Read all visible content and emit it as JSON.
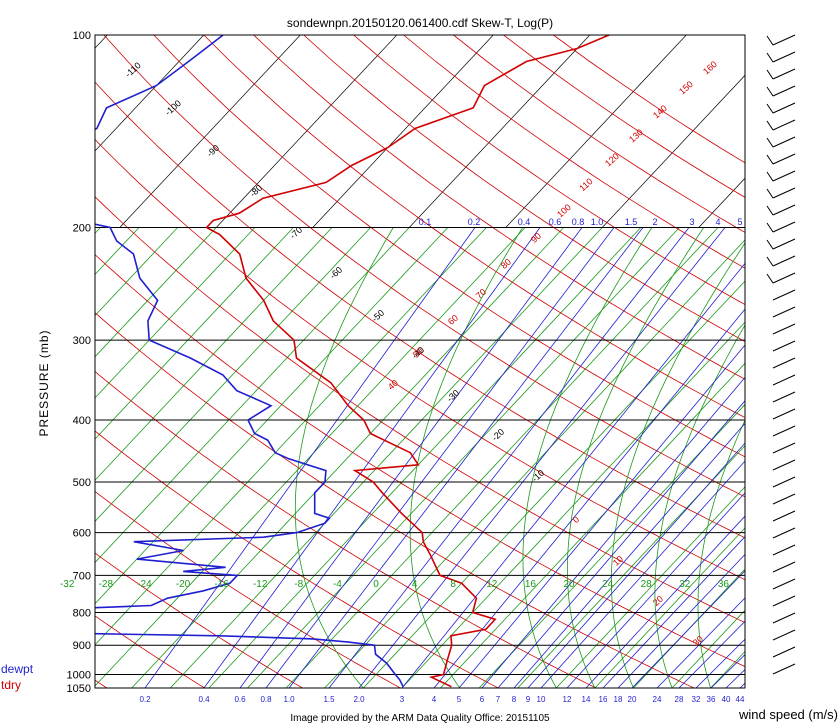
{
  "title": "sondewnpn.20150120.061400.cdf    Skew-T, Log(P)",
  "y_axis_label": "PRESSURE  (mb)",
  "footer": "Image provided by the ARM Data Quality Office: 20151105",
  "wind_axis_label": "wind speed  (m/s)",
  "legend": {
    "dewpt": "dewpt",
    "tdry": "tdry"
  },
  "colors": {
    "dewpt": "#1f1fd0",
    "tdry": "#d00000",
    "isotherm": "#1a9a1a",
    "theta": "#d00000",
    "mixing": "#1f1fd0",
    "grid": "#000000"
  },
  "chart_data": {
    "type": "line",
    "pressure_levels": [
      "100",
      "200",
      "300",
      "400",
      "500",
      "600",
      "700",
      "800",
      "900",
      "1000",
      "1050"
    ],
    "pressure_values": [
      100,
      200,
      300,
      400,
      500,
      600,
      700,
      800,
      900,
      1000,
      1050
    ],
    "temperature_ticks": [
      "-32",
      "-28",
      "-24",
      "-20",
      "-16",
      "-12",
      "-8",
      "-4",
      "0",
      "4",
      "8",
      "12",
      "16",
      "20",
      "24",
      "28",
      "32",
      "36"
    ],
    "mixing_ratio_top": [
      "0.1",
      "0.2",
      "0.4",
      "0.6",
      "0.8",
      "1.0",
      "1.5",
      "2",
      "3",
      "4",
      "5"
    ],
    "mixing_ratio_bottom": [
      "0.2",
      "0.4",
      "0.6",
      "0.8",
      "1.0",
      "1.5",
      "2.0",
      "3",
      "4",
      "5",
      "6",
      "7",
      "8",
      "9",
      "10",
      "12",
      "14",
      "16",
      "18",
      "20",
      "24",
      "28",
      "32",
      "36",
      "40",
      "44"
    ],
    "theta_labels": [
      "-110",
      "-100",
      "-90",
      "-80",
      "-70",
      "-60",
      "-50",
      "-40",
      "-30",
      "-20",
      "-10",
      "0",
      "10",
      "20",
      "30",
      "40",
      "50",
      "60",
      "70",
      "80",
      "90",
      "100",
      "110",
      "120",
      "130",
      "140",
      "150",
      "160"
    ],
    "series": [
      {
        "name": "tdry",
        "points": [
          [
            1045,
            9
          ],
          [
            1010,
            6
          ],
          [
            1000,
            7
          ],
          [
            950,
            6
          ],
          [
            900,
            5
          ],
          [
            870,
            4
          ],
          [
            850,
            7
          ],
          [
            820,
            7
          ],
          [
            800,
            4
          ],
          [
            760,
            3
          ],
          [
            720,
            0
          ],
          [
            700,
            -3
          ],
          [
            650,
            -6
          ],
          [
            620,
            -8
          ],
          [
            600,
            -9
          ],
          [
            560,
            -13
          ],
          [
            520,
            -17
          ],
          [
            500,
            -19
          ],
          [
            480,
            -22
          ],
          [
            470,
            -16
          ],
          [
            450,
            -18
          ],
          [
            420,
            -24
          ],
          [
            400,
            -26
          ],
          [
            380,
            -29
          ],
          [
            350,
            -33
          ],
          [
            320,
            -39
          ],
          [
            300,
            -41
          ],
          [
            280,
            -45
          ],
          [
            260,
            -48
          ],
          [
            240,
            -52
          ],
          [
            220,
            -55
          ],
          [
            205,
            -59
          ],
          [
            200,
            -61
          ],
          [
            195,
            -61
          ],
          [
            190,
            -59
          ],
          [
            180,
            -58
          ],
          [
            170,
            -53
          ],
          [
            160,
            -52
          ],
          [
            150,
            -50
          ],
          [
            140,
            -49
          ],
          [
            130,
            -45
          ],
          [
            120,
            -46
          ],
          [
            110,
            -44
          ],
          [
            105,
            -40
          ],
          [
            100,
            -38
          ]
        ]
      },
      {
        "name": "dewpt",
        "points": [
          [
            1045,
            4
          ],
          [
            1020,
            3
          ],
          [
            1000,
            2
          ],
          [
            960,
            0
          ],
          [
            930,
            -2
          ],
          [
            900,
            -3
          ],
          [
            890,
            -6
          ],
          [
            880,
            -10
          ],
          [
            870,
            -20
          ],
          [
            860,
            -40
          ],
          [
            850,
            -56
          ],
          [
            840,
            -54
          ],
          [
            820,
            -48
          ],
          [
            810,
            -38
          ],
          [
            800,
            -42
          ],
          [
            790,
            -39
          ],
          [
            780,
            -30
          ],
          [
            760,
            -29
          ],
          [
            740,
            -26
          ],
          [
            720,
            -24
          ],
          [
            700,
            -24
          ],
          [
            690,
            -30
          ],
          [
            680,
            -26
          ],
          [
            660,
            -36
          ],
          [
            640,
            -32
          ],
          [
            620,
            -38
          ],
          [
            610,
            -25
          ],
          [
            600,
            -22
          ],
          [
            580,
            -20
          ],
          [
            570,
            -20
          ],
          [
            560,
            -22
          ],
          [
            520,
            -24
          ],
          [
            500,
            -24
          ],
          [
            480,
            -25
          ],
          [
            460,
            -30
          ],
          [
            450,
            -32
          ],
          [
            430,
            -34
          ],
          [
            420,
            -36
          ],
          [
            400,
            -38
          ],
          [
            380,
            -37
          ],
          [
            360,
            -42
          ],
          [
            340,
            -45
          ],
          [
            320,
            -50
          ],
          [
            300,
            -56
          ],
          [
            280,
            -58
          ],
          [
            260,
            -59
          ],
          [
            240,
            -63
          ],
          [
            220,
            -66
          ],
          [
            210,
            -69
          ],
          [
            200,
            -71
          ],
          [
            195,
            -75
          ],
          [
            190,
            -89
          ],
          [
            187,
            -96
          ],
          [
            183,
            -96
          ],
          [
            180,
            -85
          ],
          [
            175,
            -83
          ],
          [
            170,
            -84
          ],
          [
            160,
            -83
          ],
          [
            150,
            -84
          ],
          [
            140,
            -82
          ],
          [
            130,
            -83
          ],
          [
            120,
            -80
          ],
          [
            110,
            -79
          ],
          [
            100,
            -78
          ]
        ]
      }
    ],
    "ylabel": "PRESSURE  (mb)",
    "xlabel": "wind speed  (m/s)",
    "ylim": [
      1050,
      100
    ],
    "xlim": [
      -32,
      38
    ],
    "yscale": "log"
  }
}
